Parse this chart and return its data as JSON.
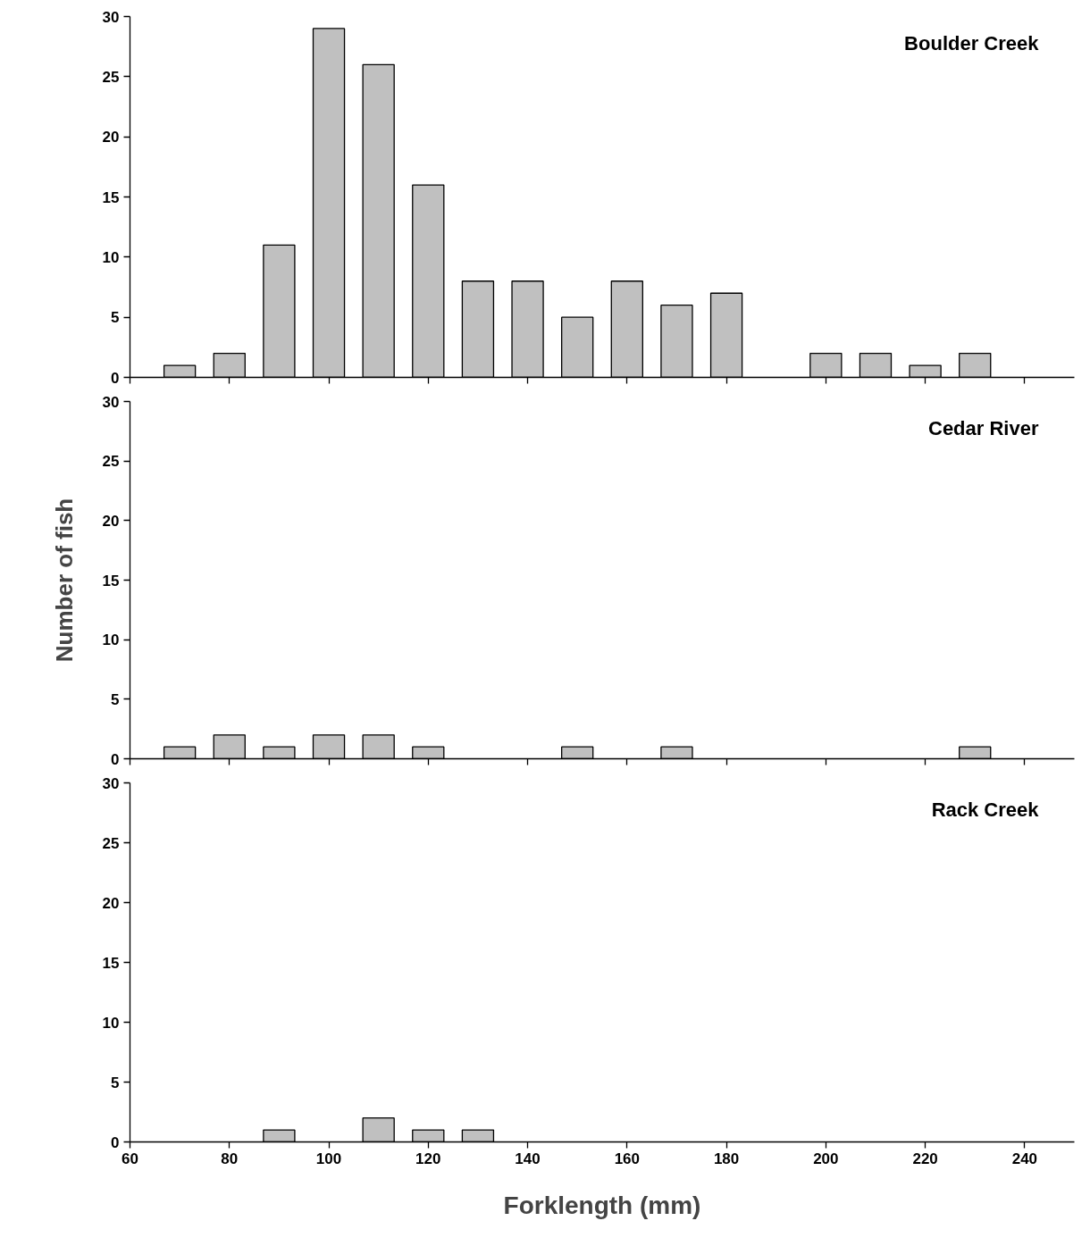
{
  "chart_data": [
    {
      "type": "bar",
      "title": "Boulder Creek",
      "x": [
        70,
        80,
        90,
        100,
        110,
        120,
        130,
        140,
        150,
        160,
        170,
        180,
        200,
        210,
        220,
        230
      ],
      "values": [
        1,
        2,
        11,
        29,
        26,
        16,
        8,
        8,
        5,
        8,
        6,
        7,
        2,
        2,
        1,
        2
      ],
      "color": "#c0c0c0",
      "xlim": [
        60,
        250
      ],
      "ylim": [
        0,
        30
      ],
      "xticks": [
        60,
        80,
        100,
        120,
        140,
        160,
        180,
        200,
        220,
        240
      ],
      "yticks": [
        0,
        5,
        10,
        15,
        20,
        25,
        30
      ],
      "tick_labels": "y",
      "grid": false
    },
    {
      "type": "bar",
      "title": "Cedar River",
      "ylabel": "Number of fish",
      "x": [
        70,
        80,
        90,
        100,
        110,
        120,
        150,
        170,
        230
      ],
      "values": [
        1,
        2,
        1,
        2,
        2,
        1,
        1,
        1,
        1
      ],
      "color": "#c0c0c0",
      "xlim": [
        60,
        250
      ],
      "ylim": [
        0,
        30
      ],
      "xticks": [
        60,
        80,
        100,
        120,
        140,
        160,
        180,
        200,
        220,
        240
      ],
      "yticks": [
        0,
        5,
        10,
        15,
        20,
        25,
        30
      ],
      "tick_labels": "y",
      "grid": false
    },
    {
      "type": "bar",
      "title": "Rack Creek",
      "xlabel": "Forklength (mm)",
      "x": [
        90,
        110,
        120,
        130
      ],
      "values": [
        1,
        2,
        1,
        1
      ],
      "color": "#c0c0c0",
      "xlim": [
        60,
        250
      ],
      "ylim": [
        0,
        30
      ],
      "xticks": [
        60,
        80,
        100,
        120,
        140,
        160,
        180,
        200,
        220,
        240
      ],
      "yticks": [
        0,
        5,
        10,
        15,
        20,
        25,
        30
      ],
      "grid": false
    }
  ]
}
